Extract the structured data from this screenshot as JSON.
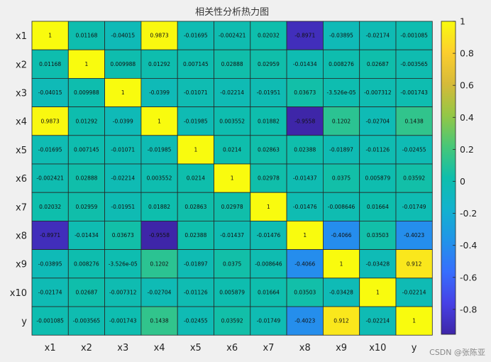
{
  "chart_data": {
    "type": "heatmap",
    "title": "相关性分析热力图",
    "rows": [
      "x1",
      "x2",
      "x3",
      "x4",
      "x5",
      "x6",
      "x7",
      "x8",
      "x9",
      "x10",
      "y"
    ],
    "cols": [
      "x1",
      "x2",
      "x3",
      "x4",
      "x5",
      "x6",
      "x7",
      "x8",
      "x9",
      "x10",
      "y"
    ],
    "values": [
      [
        1,
        0.01168,
        -0.04015,
        0.9873,
        -0.01695,
        -0.002421,
        0.02032,
        -0.8971,
        -0.03895,
        -0.02174,
        -0.001085
      ],
      [
        0.01168,
        1,
        0.009988,
        0.01292,
        0.007145,
        0.02888,
        0.02959,
        -0.01434,
        0.008276,
        0.02687,
        -0.003565
      ],
      [
        -0.04015,
        0.009988,
        1,
        -0.0399,
        -0.01071,
        -0.02214,
        -0.01951,
        0.03673,
        -3.526e-05,
        -0.007312,
        -0.001743
      ],
      [
        0.9873,
        0.01292,
        -0.0399,
        1,
        -0.01985,
        0.003552,
        0.01882,
        -0.9558,
        0.1202,
        -0.02704,
        0.1438
      ],
      [
        -0.01695,
        0.007145,
        -0.01071,
        -0.01985,
        1,
        0.0214,
        0.02863,
        0.02388,
        -0.01897,
        -0.01126,
        -0.02455
      ],
      [
        -0.002421,
        0.02888,
        -0.02214,
        0.003552,
        0.0214,
        1,
        0.02978,
        -0.01437,
        0.0375,
        0.005879,
        0.03592
      ],
      [
        0.02032,
        0.02959,
        -0.01951,
        0.01882,
        0.02863,
        0.02978,
        1,
        -0.01476,
        -0.008646,
        0.01664,
        -0.01749
      ],
      [
        -0.8971,
        -0.01434,
        0.03673,
        -0.9558,
        0.02388,
        -0.01437,
        -0.01476,
        1,
        -0.4066,
        0.03503,
        -0.4023
      ],
      [
        -0.03895,
        0.008276,
        -3.526e-05,
        0.1202,
        -0.01897,
        0.0375,
        -0.008646,
        -0.4066,
        1,
        -0.03428,
        0.912
      ],
      [
        -0.02174,
        0.02687,
        -0.007312,
        -0.02704,
        -0.01126,
        0.005879,
        0.01664,
        0.03503,
        -0.03428,
        1,
        -0.02214
      ],
      [
        -0.001085,
        -0.003565,
        -0.001743,
        0.1438,
        -0.02455,
        0.03592,
        -0.01749,
        -0.4023,
        0.912,
        -0.02214,
        1
      ]
    ],
    "cell_labels": [
      [
        "1",
        "0.01168",
        "-0.04015",
        "0.9873",
        "-0.01695",
        "-0.002421",
        "0.02032",
        "-0.8971",
        "-0.03895",
        "-0.02174",
        "-0.001085"
      ],
      [
        "0.01168",
        "1",
        "0.009988",
        "0.01292",
        "0.007145",
        "0.02888",
        "0.02959",
        "-0.01434",
        "0.008276",
        "0.02687",
        "-0.003565"
      ],
      [
        "-0.04015",
        "0.009988",
        "1",
        "-0.0399",
        "-0.01071",
        "-0.02214",
        "-0.01951",
        "0.03673",
        "-3.526e-05",
        "-0.007312",
        "-0.001743"
      ],
      [
        "0.9873",
        "0.01292",
        "-0.0399",
        "1",
        "-0.01985",
        "0.003552",
        "0.01882",
        "-0.9558",
        "0.1202",
        "-0.02704",
        "0.1438"
      ],
      [
        "-0.01695",
        "0.007145",
        "-0.01071",
        "-0.01985",
        "1",
        "0.0214",
        "0.02863",
        "0.02388",
        "-0.01897",
        "-0.01126",
        "-0.02455"
      ],
      [
        "-0.002421",
        "0.02888",
        "-0.02214",
        "0.003552",
        "0.0214",
        "1",
        "0.02978",
        "-0.01437",
        "0.0375",
        "0.005879",
        "0.03592"
      ],
      [
        "0.02032",
        "0.02959",
        "-0.01951",
        "0.01882",
        "0.02863",
        "0.02978",
        "1",
        "-0.01476",
        "-0.008646",
        "0.01664",
        "-0.01749"
      ],
      [
        "-0.8971",
        "-0.01434",
        "0.03673",
        "-0.9558",
        "0.02388",
        "-0.01437",
        "-0.01476",
        "1",
        "-0.4066",
        "0.03503",
        "-0.4023"
      ],
      [
        "-0.03895",
        "0.008276",
        "-3.526e-05",
        "0.1202",
        "-0.01897",
        "0.0375",
        "-0.008646",
        "-0.4066",
        "1",
        "-0.03428",
        "0.912"
      ],
      [
        "-0.02174",
        "0.02687",
        "-0.007312",
        "-0.02704",
        "-0.01126",
        "0.005879",
        "0.01664",
        "0.03503",
        "-0.03428",
        "1",
        "-0.02214"
      ],
      [
        "-0.001085",
        "-0.003565",
        "-0.001743",
        "0.1438",
        "-0.02455",
        "0.03592",
        "-0.01749",
        "-0.4023",
        "0.912",
        "-0.02214",
        "1"
      ]
    ],
    "color_range": [
      -0.9558,
      1
    ],
    "colorbar": {
      "ticks": [
        -0.8,
        -0.6,
        -0.4,
        -0.2,
        0,
        0.2,
        0.4,
        0.6,
        0.8,
        1
      ],
      "tick_labels": [
        "-0.8",
        "-0.6",
        "-0.4",
        "-0.2",
        "0",
        "0.2",
        "0.4",
        "0.6",
        "0.8",
        "1"
      ]
    },
    "colormap": "parula",
    "grid": true
  },
  "watermark": "CSDN @张陈亚"
}
